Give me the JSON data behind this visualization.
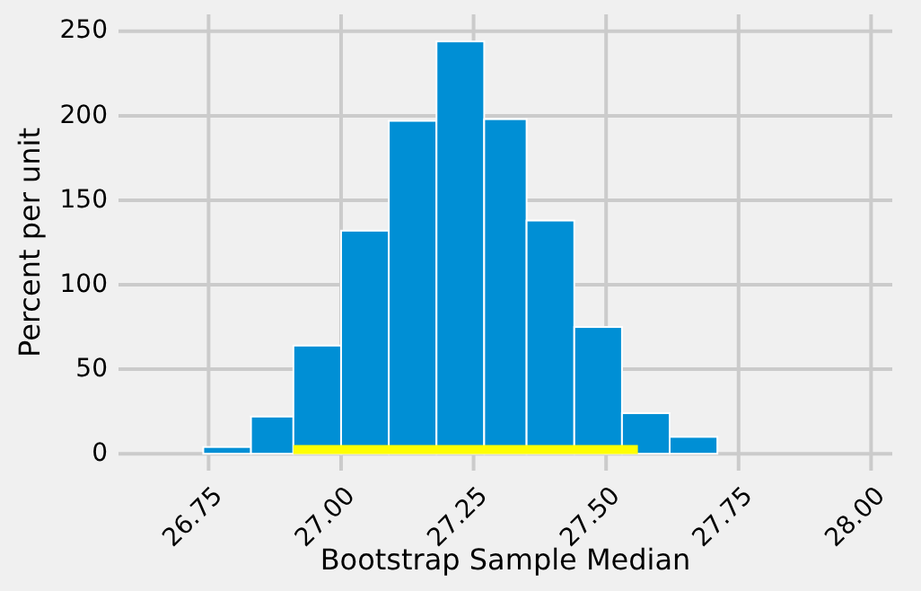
{
  "chart_data": {
    "type": "histogram",
    "xlabel": "Bootstrap Sample Median",
    "ylabel": "Percent per unit",
    "xlim": [
      26.58,
      28.04
    ],
    "xticks": [
      {
        "value": 26.75,
        "label": "26.75"
      },
      {
        "value": 27.0,
        "label": "27.00"
      },
      {
        "value": 27.25,
        "label": "27.25"
      },
      {
        "value": 27.5,
        "label": "27.50"
      },
      {
        "value": 27.75,
        "label": "27.75"
      },
      {
        "value": 28.0,
        "label": "28.00"
      }
    ],
    "ylim": [
      -10,
      260
    ],
    "yticks": [
      0,
      50,
      100,
      150,
      200,
      250
    ],
    "grid": true,
    "series": [
      {
        "color": "#008fd5",
        "bins": [
          26.74,
          26.83,
          26.91,
          27.0,
          27.09,
          27.18,
          27.27,
          27.35,
          27.44,
          27.53,
          27.62,
          27.71
        ],
        "values": [
          4,
          22,
          64,
          132,
          197,
          244,
          198,
          138,
          75,
          24,
          10
        ]
      },
      {
        "type": "line",
        "color": "#ffff00",
        "x": [
          26.91,
          27.56
        ],
        "values": [
          2.5,
          2.5
        ]
      }
    ]
  }
}
